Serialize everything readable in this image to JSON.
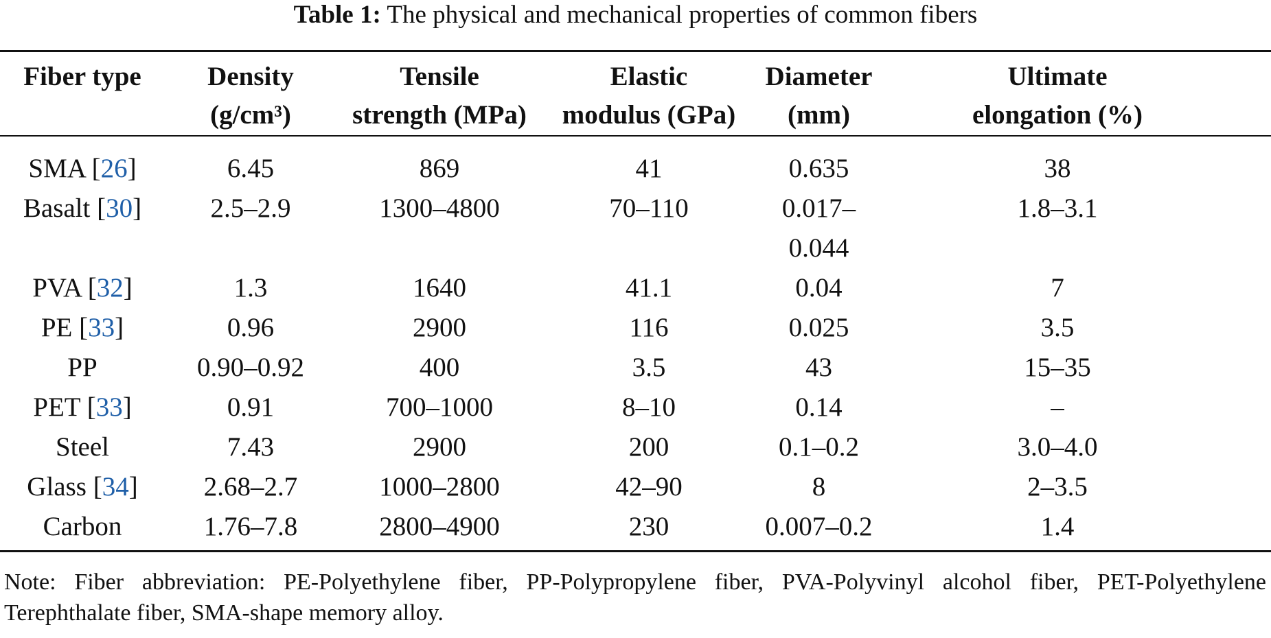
{
  "caption": {
    "label": "Table 1:",
    "text": "The physical and mechanical properties of common fibers"
  },
  "headers": [
    {
      "line1": "Fiber type",
      "line2": ""
    },
    {
      "line1": "Density",
      "line2": "(g/cm³)"
    },
    {
      "line1": "Tensile",
      "line2": "strength (MPa)"
    },
    {
      "line1": "Elastic",
      "line2": "modulus (GPa)"
    },
    {
      "line1": "Diameter",
      "line2": "(mm)"
    },
    {
      "line1": "Ultimate",
      "line2": "elongation (%)"
    }
  ],
  "rows": [
    {
      "fiber": "SMA",
      "ref": "26",
      "density": "6.45",
      "tensile": "869",
      "modulus": "41",
      "diameter": "0.635",
      "diameter2": "",
      "elongation": "38"
    },
    {
      "fiber": "Basalt",
      "ref": "30",
      "density": "2.5–2.9",
      "tensile": "1300–4800",
      "modulus": "70–110",
      "diameter": "0.017–",
      "diameter2": "0.044",
      "elongation": "1.8–3.1"
    },
    {
      "fiber": "PVA",
      "ref": "32",
      "density": "1.3",
      "tensile": "1640",
      "modulus": "41.1",
      "diameter": "0.04",
      "diameter2": "",
      "elongation": "7"
    },
    {
      "fiber": "PE",
      "ref": "33",
      "density": "0.96",
      "tensile": "2900",
      "modulus": "116",
      "diameter": "0.025",
      "diameter2": "",
      "elongation": "3.5"
    },
    {
      "fiber": "PP",
      "ref": "",
      "density": "0.90–0.92",
      "tensile": "400",
      "modulus": "3.5",
      "diameter": "43",
      "diameter2": "",
      "elongation": "15–35"
    },
    {
      "fiber": "PET",
      "ref": "33",
      "density": "0.91",
      "tensile": "700–1000",
      "modulus": "8–10",
      "diameter": "0.14",
      "diameter2": "",
      "elongation": "–"
    },
    {
      "fiber": "Steel",
      "ref": "",
      "density": "7.43",
      "tensile": "2900",
      "modulus": "200",
      "diameter": "0.1–0.2",
      "diameter2": "",
      "elongation": "3.0–4.0"
    },
    {
      "fiber": "Glass",
      "ref": "34",
      "density": "2.68–2.7",
      "tensile": "1000–2800",
      "modulus": "42–90",
      "diameter": "8",
      "diameter2": "",
      "elongation": "2–3.5"
    },
    {
      "fiber": "Carbon",
      "ref": "",
      "density": "1.76–7.8",
      "tensile": "2800–4900",
      "modulus": "230",
      "diameter": "0.007–0.2",
      "diameter2": "",
      "elongation": "1.4"
    }
  ],
  "note": "Note: Fiber abbreviation: PE-Polyethylene fiber, PP-Polypropylene fiber, PVA-Polyvinyl alcohol fiber, PET-Polyethylene Terephthalate fiber, SMA-shape memory alloy."
}
